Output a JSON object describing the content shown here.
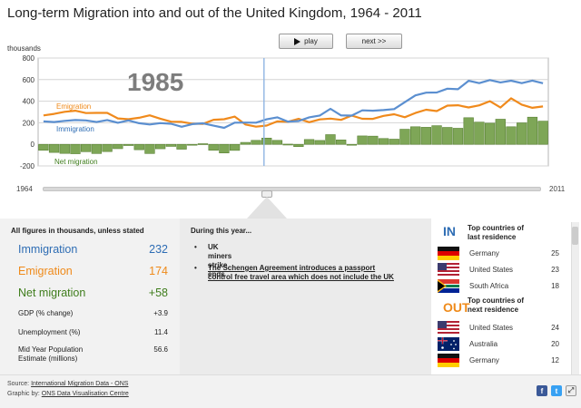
{
  "title": "Long-term Migration into and out of the United Kingdom, 1964 - 2011",
  "controls": {
    "play_label": "play",
    "next_label": "next >>"
  },
  "chart_data": {
    "type": "line",
    "ylabel": "thousands",
    "ylim": [
      -200,
      800
    ],
    "yticks": [
      -200,
      0,
      200,
      400,
      600,
      800
    ],
    "x_start": 1964,
    "x_end": 2011,
    "selected_year": 1985,
    "years": [
      1964,
      1965,
      1966,
      1967,
      1968,
      1969,
      1970,
      1971,
      1972,
      1973,
      1974,
      1975,
      1976,
      1977,
      1978,
      1979,
      1980,
      1981,
      1982,
      1983,
      1984,
      1985,
      1986,
      1987,
      1988,
      1989,
      1990,
      1991,
      1992,
      1993,
      1994,
      1995,
      1996,
      1997,
      1998,
      1999,
      2000,
      2001,
      2002,
      2003,
      2004,
      2005,
      2006,
      2007,
      2008,
      2009,
      2010,
      2011
    ],
    "series": [
      {
        "name": "Emigration",
        "color": "#f08a1c",
        "values": [
          268,
          282,
          302,
          312,
          290,
          292,
          292,
          240,
          233,
          246,
          269,
          238,
          210,
          208,
          192,
          189,
          228,
          233,
          257,
          184,
          164,
          174,
          213,
          209,
          237,
          205,
          231,
          239,
          227,
          266,
          237,
          236,
          264,
          279,
          251,
          291,
          321,
          308,
          359,
          362,
          342,
          361,
          400,
          341,
          427,
          368,
          339,
          351
        ]
      },
      {
        "name": "Immigration",
        "color": "#5b8fd0",
        "values": [
          213,
          207,
          218,
          225,
          222,
          207,
          225,
          200,
          222,
          196,
          184,
          197,
          191,
          163,
          187,
          195,
          173,
          153,
          201,
          202,
          201,
          232,
          250,
          211,
          216,
          250,
          267,
          329,
          268,
          266,
          315,
          312,
          318,
          327,
          391,
          454,
          479,
          481,
          516,
          511,
          589,
          567,
          596,
          574,
          590,
          567,
          591,
          566
        ]
      },
      {
        "name": "Net migration",
        "color": "#7ea657",
        "values": [
          -55,
          -75,
          -84,
          -87,
          -68,
          -85,
          -67,
          -40,
          -11,
          -50,
          -85,
          -41,
          -19,
          -45,
          -5,
          6,
          -55,
          -80,
          -56,
          18,
          37,
          58,
          37,
          2,
          -21,
          45,
          36,
          90,
          41,
          0,
          78,
          76,
          54,
          48,
          140,
          163,
          158,
          173,
          157,
          149,
          247,
          206,
          196,
          233,
          163,
          199,
          252,
          215
        ]
      }
    ],
    "annotations": [
      "Emigration",
      "Immigration",
      "Net migration"
    ]
  },
  "stats": {
    "note": "All figures in thousands, unless stated",
    "immigration": {
      "label": "Immigration",
      "value": "232"
    },
    "emigration": {
      "label": "Emigration",
      "value": "174"
    },
    "net": {
      "label": "Net migration",
      "value": "+58"
    },
    "gdp": {
      "label": "GDP (% change)",
      "value": "+3.9"
    },
    "unemployment": {
      "label": "Unemployment (%)",
      "value": "11.4"
    },
    "population": {
      "label_line1": "Mid Year Population",
      "label_line2": "Estimate (millions)",
      "value": "56.6"
    }
  },
  "year_events": {
    "heading": "During this year...",
    "items": [
      "UK miners strike ends",
      "The Schengen Agreement introduces a passport",
      "control free travel area which does not include the UK"
    ]
  },
  "countries": {
    "in_label": "IN",
    "in_heading_1": "Top countries of",
    "in_heading_2": "last residence",
    "in": [
      {
        "name": "Germany",
        "value": "25",
        "flag": "germany-flag-icon"
      },
      {
        "name": "United States",
        "value": "23",
        "flag": "us-flag-icon"
      },
      {
        "name": "South Africa",
        "value": "18",
        "flag": "south-africa-flag-icon"
      }
    ],
    "out_label": "OUT",
    "out_heading_1": "Top countries of",
    "out_heading_2": "next residence",
    "out": [
      {
        "name": "United States",
        "value": "24",
        "flag": "us-flag-icon"
      },
      {
        "name": "Australia",
        "value": "20",
        "flag": "australia-flag-icon"
      },
      {
        "name": "Germany",
        "value": "12",
        "flag": "germany-flag-icon"
      }
    ]
  },
  "footer": {
    "source_prefix": "Source: ",
    "source_link": "International Migration Data - ONS",
    "graphic_prefix": "Graphic by: ",
    "graphic_link": "ONS Data Visualisation Centre"
  },
  "colors": {
    "immigration": "#2e6db4",
    "emigration": "#ef8a1a",
    "net": "#3f7d1c",
    "accent_in": "#2e6db4",
    "accent_out": "#ef8a1a"
  },
  "social_icons": [
    "facebook-icon",
    "twitter-icon",
    "fullscreen-icon"
  ]
}
